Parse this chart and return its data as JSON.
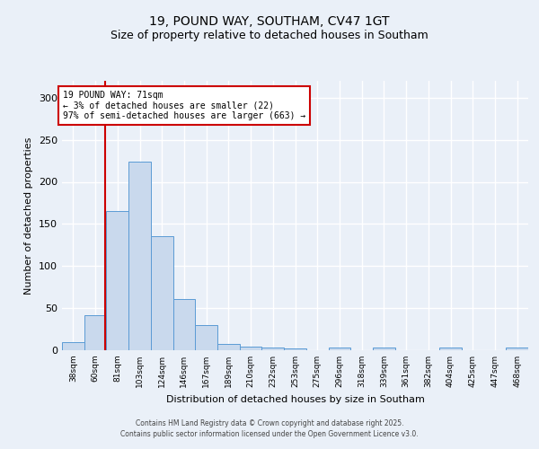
{
  "title1": "19, POUND WAY, SOUTHAM, CV47 1GT",
  "title2": "Size of property relative to detached houses in Southam",
  "xlabel": "Distribution of detached houses by size in Southam",
  "ylabel": "Number of detached properties",
  "bin_labels": [
    "38sqm",
    "60sqm",
    "81sqm",
    "103sqm",
    "124sqm",
    "146sqm",
    "167sqm",
    "189sqm",
    "210sqm",
    "232sqm",
    "253sqm",
    "275sqm",
    "296sqm",
    "318sqm",
    "339sqm",
    "361sqm",
    "382sqm",
    "404sqm",
    "425sqm",
    "447sqm",
    "468sqm"
  ],
  "bar_values": [
    10,
    42,
    165,
    224,
    135,
    61,
    30,
    8,
    4,
    3,
    2,
    0,
    3,
    0,
    3,
    0,
    0,
    3,
    0,
    0,
    3
  ],
  "bar_color": "#c9d9ed",
  "bar_edge_color": "#5b9bd5",
  "bar_width": 1.0,
  "vline_x": 1.45,
  "vline_color": "#cc0000",
  "annotation_text": "19 POUND WAY: 71sqm\n← 3% of detached houses are smaller (22)\n97% of semi-detached houses are larger (663) →",
  "annotation_box_color": "#ffffff",
  "annotation_box_edge": "#cc0000",
  "ylim": [
    0,
    320
  ],
  "yticks": [
    0,
    50,
    100,
    150,
    200,
    250,
    300
  ],
  "background_color": "#eaf0f8",
  "grid_color": "#ffffff",
  "footer1": "Contains HM Land Registry data © Crown copyright and database right 2025.",
  "footer2": "Contains public sector information licensed under the Open Government Licence v3.0."
}
